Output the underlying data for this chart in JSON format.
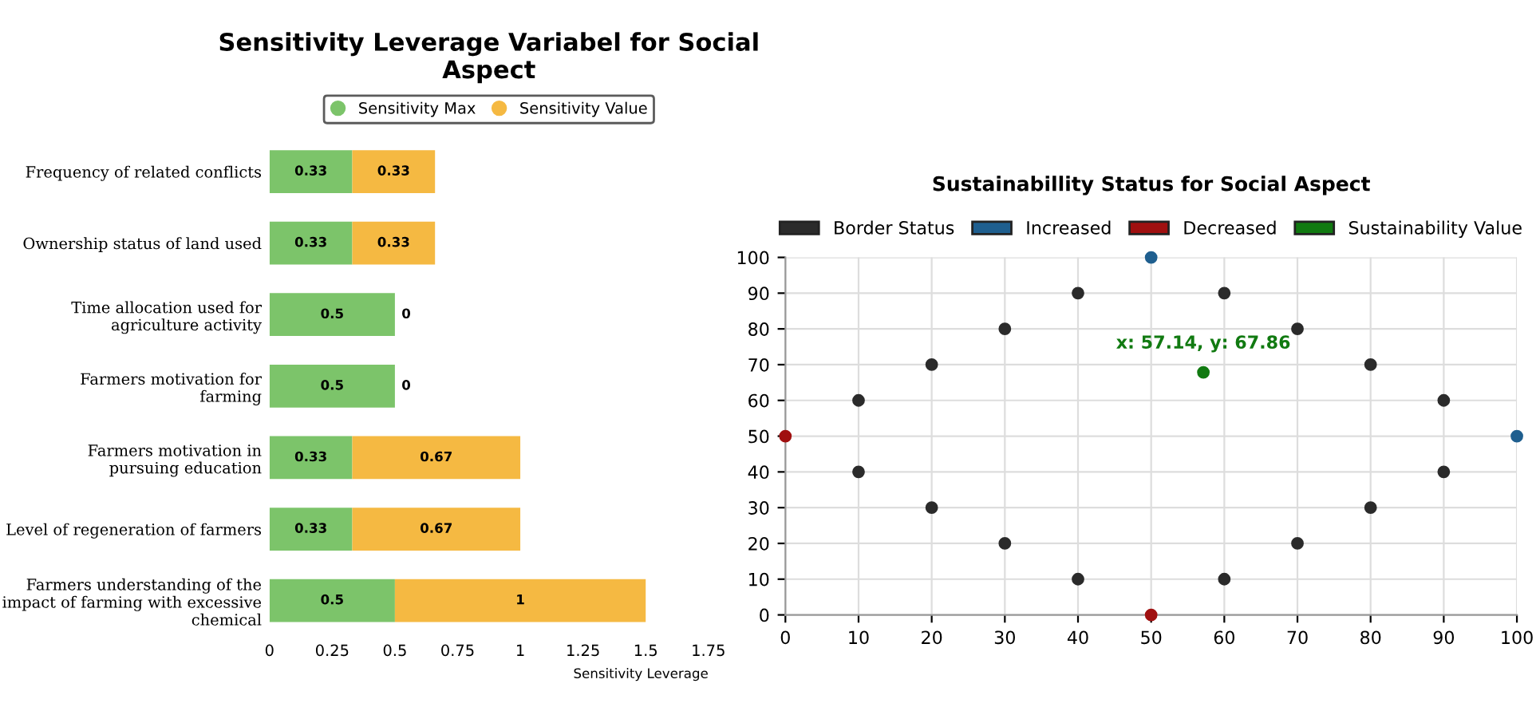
{
  "chart_data": [
    {
      "type": "bar",
      "orientation": "horizontal",
      "stacked": true,
      "title": "Sensitivity Leverage Variabel for Social\nAspect",
      "xlabel": "Sensitivity Leverage",
      "categories": [
        "Frequency of related conflicts",
        "Ownership status of land used",
        "Time allocation used for\nagriculture activity",
        "Farmers motivation for\nfarming",
        "Farmers motivation in\npursuing education",
        "Level of regeneration of farmers",
        "Farmers understanding of the\nimpact of farming with excessive\nchemical"
      ],
      "series": [
        {
          "name": "Sensitivity Max",
          "color": "#7cc46a",
          "values": [
            0.33,
            0.33,
            0.5,
            0.5,
            0.33,
            0.33,
            0.5
          ]
        },
        {
          "name": "Sensitivity Value",
          "color": "#f5b942",
          "values": [
            0.33,
            0.33,
            0,
            0,
            0.67,
            0.67,
            1
          ]
        }
      ],
      "xlim": [
        0,
        1.75
      ],
      "xticks": [
        0,
        0.25,
        0.5,
        0.75,
        1,
        1.25,
        1.5,
        1.75
      ],
      "data_labels": true,
      "legend": "top",
      "grid": false
    },
    {
      "type": "scatter",
      "title": "Sustainabillity Status for Social Aspect",
      "marker": "circle",
      "series": [
        {
          "name": "Border Status",
          "color": "#2b2b2b",
          "x": [
            10,
            10,
            20,
            20,
            30,
            30,
            40,
            40,
            60,
            60,
            70,
            70,
            80,
            80,
            90,
            90
          ],
          "values": [
            60,
            40,
            70,
            30,
            80,
            20,
            90,
            10,
            90,
            10,
            80,
            20,
            70,
            30,
            60,
            40
          ]
        },
        {
          "name": "Increased",
          "color": "#1f5f8f",
          "x": [
            50,
            100
          ],
          "values": [
            100,
            50
          ]
        },
        {
          "name": "Decreased",
          "color": "#a01010",
          "x": [
            0,
            50
          ],
          "values": [
            50,
            0
          ]
        },
        {
          "name": "Sustainability Value",
          "color": "#117a11",
          "x": [
            57.14
          ],
          "values": [
            67.86
          ]
        }
      ],
      "annotations": [
        {
          "text": "x: 57.14, y: 67.86",
          "x": 57.14,
          "y": 67.86
        }
      ],
      "xlim": [
        0,
        100
      ],
      "ylim": [
        0,
        100
      ],
      "xticks": [
        0,
        10,
        20,
        30,
        40,
        50,
        60,
        70,
        80,
        90,
        100
      ],
      "yticks": [
        0,
        10,
        20,
        30,
        40,
        50,
        60,
        70,
        80,
        90,
        100
      ],
      "grid": true,
      "legend": "top"
    }
  ]
}
